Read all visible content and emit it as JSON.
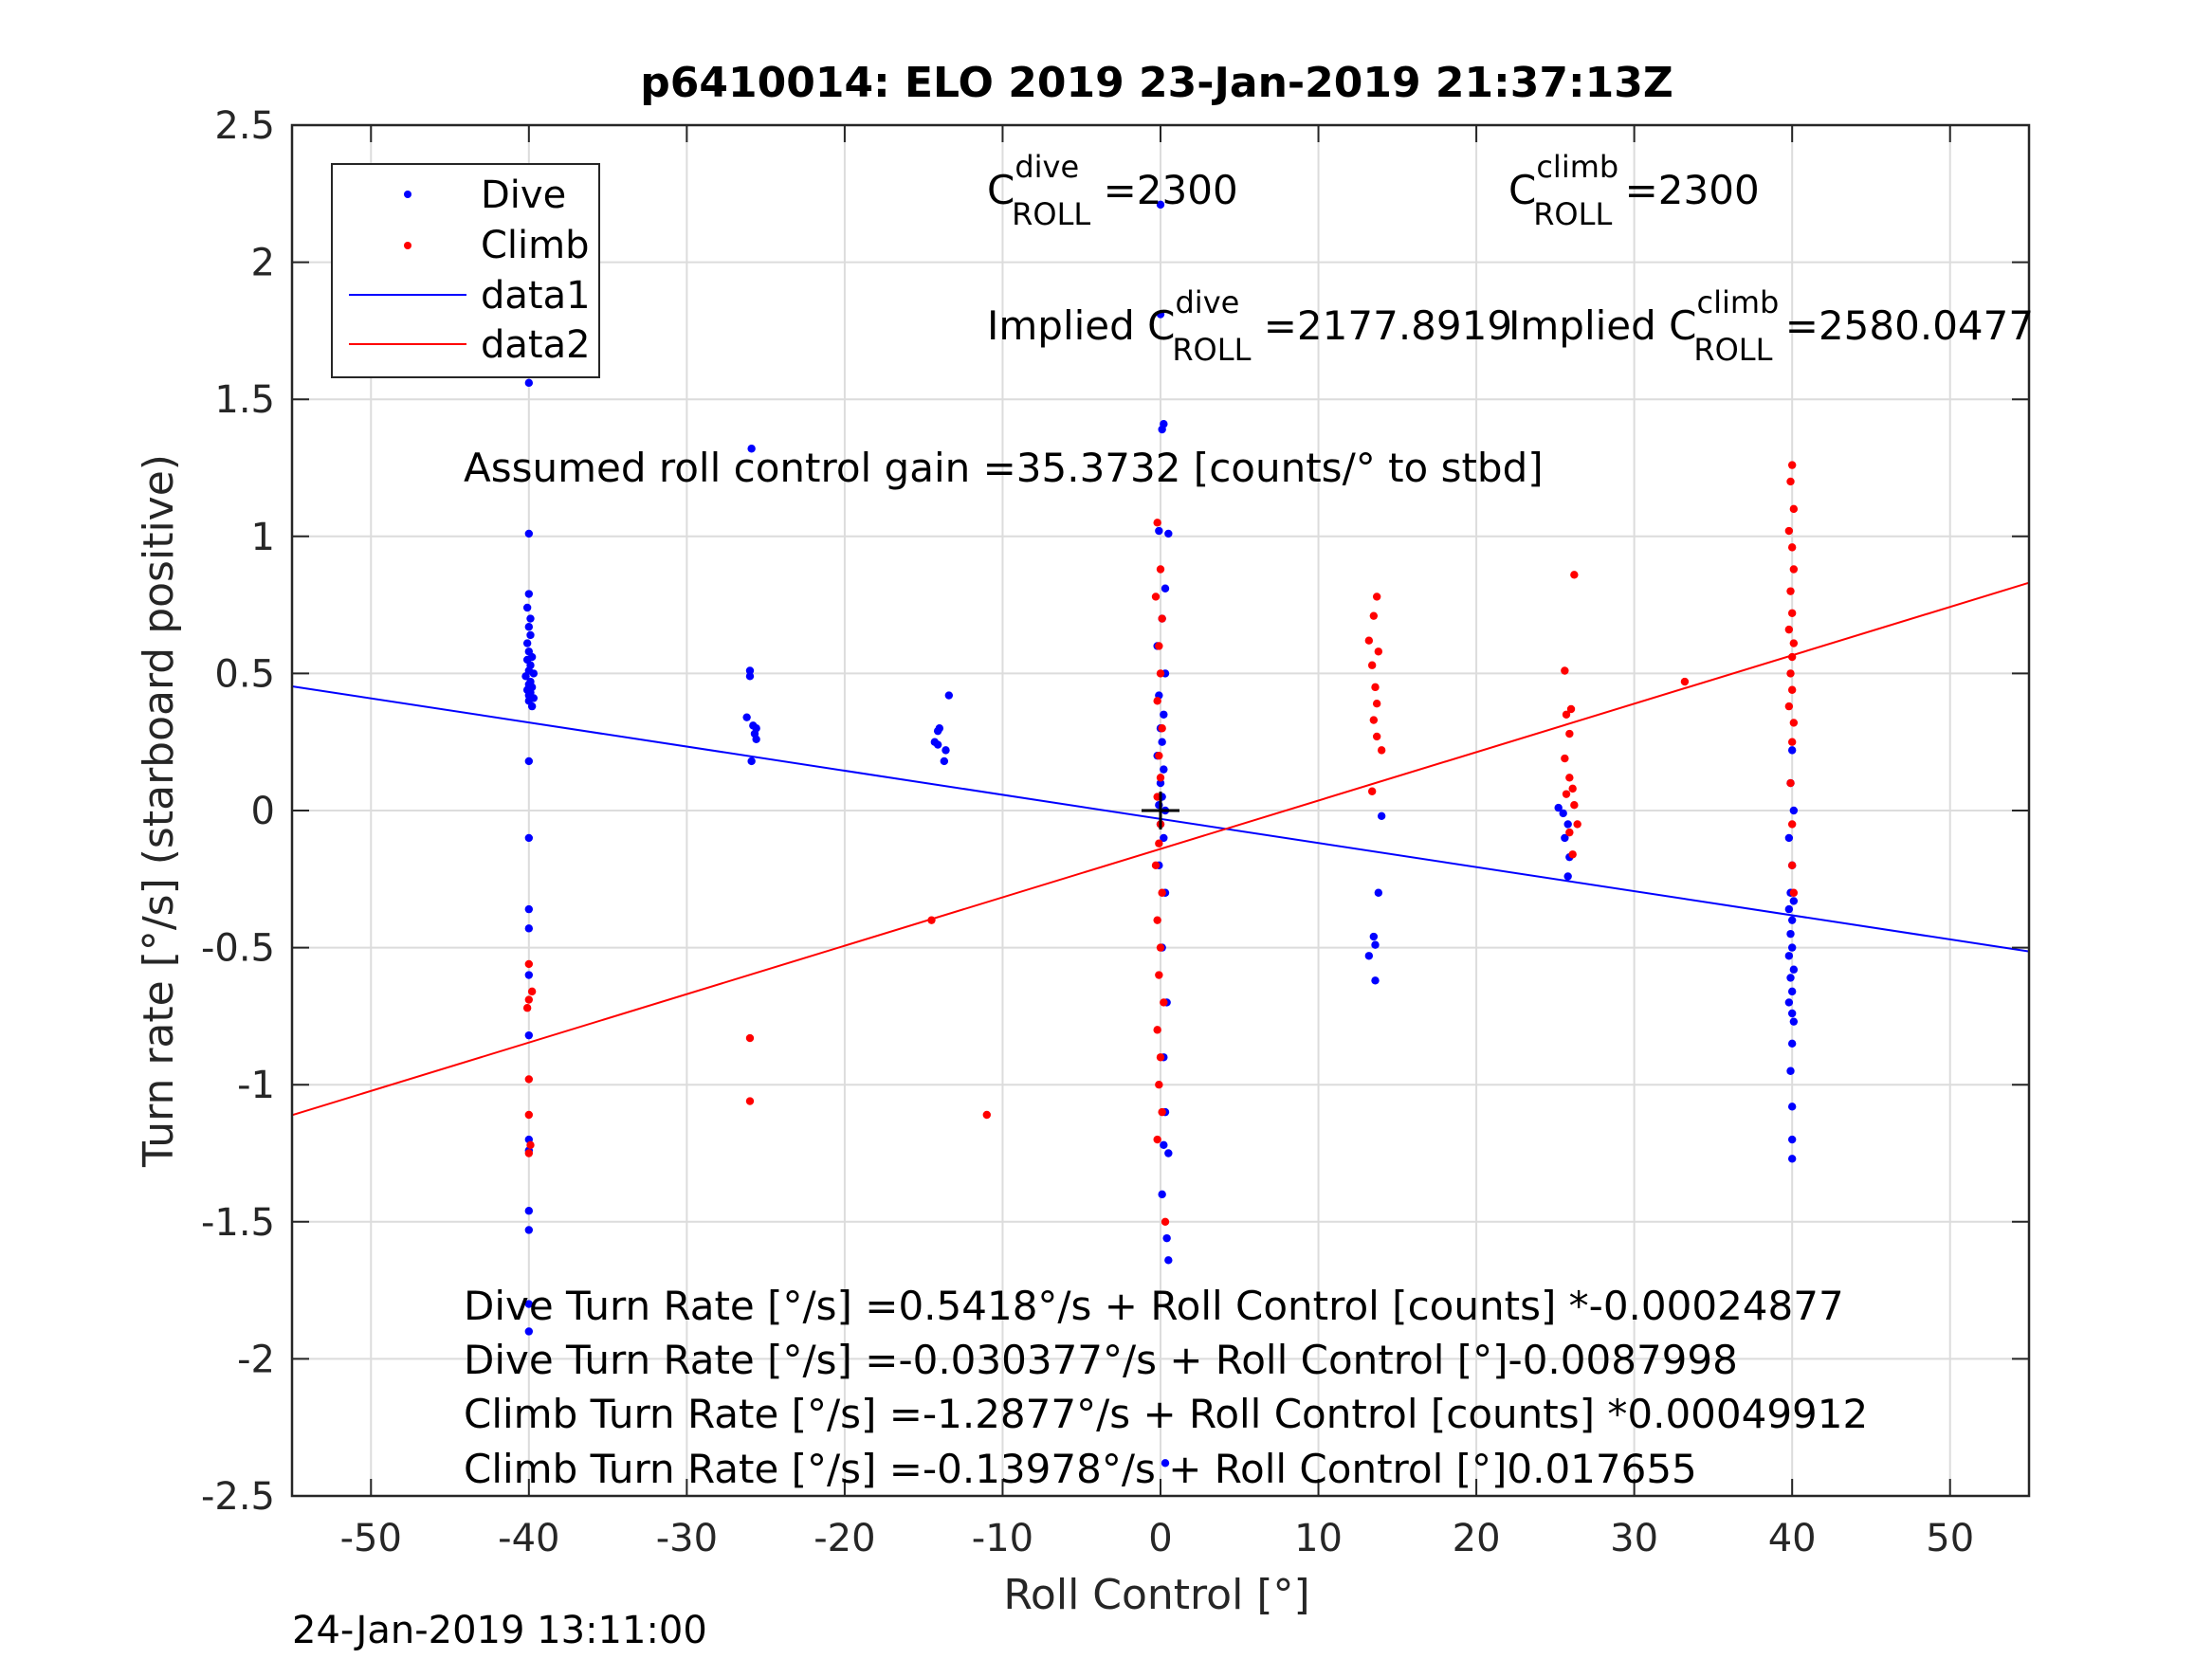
{
  "chart_data": {
    "type": "scatter",
    "title": "p6410014: ELO 2019 23-Jan-2019 21:37:13Z",
    "xlabel": "Roll Control [°]",
    "ylabel": "Turn rate [°/s] (starboard positive)",
    "xlim": [
      -55,
      55
    ],
    "ylim": [
      -2.5,
      2.5
    ],
    "xticks": [
      -50,
      -40,
      -30,
      -20,
      -10,
      0,
      10,
      20,
      30,
      40,
      50
    ],
    "yticks": [
      -2.5,
      -2,
      -1.5,
      -1,
      -0.5,
      0,
      0.5,
      1,
      1.5,
      2,
      2.5
    ],
    "xtick_labels": [
      "-50",
      "-40",
      "-30",
      "-20",
      "-10",
      "0",
      "10",
      "20",
      "30",
      "40",
      "50"
    ],
    "ytick_labels": [
      "-2.5",
      "-2",
      "-1.5",
      "-1",
      "-0.5",
      "0",
      "0.5",
      "1",
      "1.5",
      "2",
      "2.5"
    ],
    "grid": true,
    "legend_location": "top-left",
    "series": [
      {
        "name": "Dive",
        "kind": "points",
        "color": "#0000ff",
        "points": [
          [
            -40,
            1.56
          ],
          [
            -40,
            1.01
          ],
          [
            -40,
            0.79
          ],
          [
            -40.1,
            0.74
          ],
          [
            -39.9,
            0.7
          ],
          [
            -40,
            0.67
          ],
          [
            -39.9,
            0.64
          ],
          [
            -40.1,
            0.61
          ],
          [
            -40,
            0.58
          ],
          [
            -39.8,
            0.56
          ],
          [
            -40.1,
            0.55
          ],
          [
            -39.9,
            0.53
          ],
          [
            -40,
            0.51
          ],
          [
            -39.7,
            0.5
          ],
          [
            -40.2,
            0.49
          ],
          [
            -39.9,
            0.47
          ],
          [
            -40,
            0.46
          ],
          [
            -39.8,
            0.45
          ],
          [
            -40.1,
            0.44
          ],
          [
            -39.9,
            0.43
          ],
          [
            -40,
            0.42
          ],
          [
            -39.7,
            0.41
          ],
          [
            -40,
            0.4
          ],
          [
            -39.8,
            0.38
          ],
          [
            -40,
            0.18
          ],
          [
            -40,
            -0.1
          ],
          [
            -40,
            -0.36
          ],
          [
            -40,
            -0.43
          ],
          [
            -40,
            -0.6
          ],
          [
            -40,
            -0.82
          ],
          [
            -40,
            -1.2
          ],
          [
            -40,
            -1.24
          ],
          [
            -40,
            -1.46
          ],
          [
            -40,
            -1.53
          ],
          [
            -40,
            -1.8
          ],
          [
            -40,
            -1.9
          ],
          [
            -26,
            0.51
          ],
          [
            -26,
            0.49
          ],
          [
            -26.2,
            0.34
          ],
          [
            -25.8,
            0.31
          ],
          [
            -25.6,
            0.3
          ],
          [
            -25.7,
            0.28
          ],
          [
            -25.6,
            0.26
          ],
          [
            -25.9,
            0.18
          ],
          [
            -25.9,
            1.32
          ],
          [
            -14,
            0.3
          ],
          [
            -14.1,
            0.29
          ],
          [
            -13.4,
            0.42
          ],
          [
            -14.3,
            0.25
          ],
          [
            -14.1,
            0.24
          ],
          [
            -13.6,
            0.22
          ],
          [
            -13.7,
            0.18
          ],
          [
            0,
            2.21
          ],
          [
            0,
            1.81
          ],
          [
            0.2,
            1.41
          ],
          [
            0.1,
            1.39
          ],
          [
            -0.1,
            1.02
          ],
          [
            0.5,
            1.01
          ],
          [
            0.3,
            0.81
          ],
          [
            0.1,
            0.7
          ],
          [
            -0.2,
            0.6
          ],
          [
            0.3,
            0.5
          ],
          [
            -0.1,
            0.42
          ],
          [
            0.2,
            0.35
          ],
          [
            0,
            0.3
          ],
          [
            0.1,
            0.25
          ],
          [
            -0.2,
            0.2
          ],
          [
            0.2,
            0.15
          ],
          [
            0,
            0.1
          ],
          [
            0.1,
            0.05
          ],
          [
            -0.1,
            0.02
          ],
          [
            0.3,
            0.0
          ],
          [
            0,
            -0.05
          ],
          [
            0.2,
            -0.1
          ],
          [
            -0.1,
            -0.2
          ],
          [
            0.3,
            -0.3
          ],
          [
            0.1,
            -0.5
          ],
          [
            0.4,
            -0.7
          ],
          [
            0.2,
            -0.9
          ],
          [
            0.3,
            -1.1
          ],
          [
            0.2,
            -1.22
          ],
          [
            0.5,
            -1.25
          ],
          [
            0.1,
            -1.4
          ],
          [
            0.4,
            -1.56
          ],
          [
            0.5,
            -1.64
          ],
          [
            0.3,
            -2.38
          ],
          [
            14,
            -0.02
          ],
          [
            13.8,
            -0.3
          ],
          [
            13.5,
            -0.46
          ],
          [
            13.6,
            -0.49
          ],
          [
            13.2,
            -0.53
          ],
          [
            13.6,
            -0.62
          ],
          [
            25.2,
            0.01
          ],
          [
            25.5,
            -0.01
          ],
          [
            25.8,
            -0.05
          ],
          [
            25.6,
            -0.1
          ],
          [
            25.9,
            -0.17
          ],
          [
            25.8,
            -0.24
          ],
          [
            40,
            0.22
          ],
          [
            39.9,
            0.1
          ],
          [
            40.1,
            0.0
          ],
          [
            39.8,
            -0.1
          ],
          [
            40,
            -0.2
          ],
          [
            39.9,
            -0.3
          ],
          [
            40.1,
            -0.33
          ],
          [
            39.8,
            -0.36
          ],
          [
            40,
            -0.4
          ],
          [
            39.9,
            -0.45
          ],
          [
            40,
            -0.5
          ],
          [
            39.8,
            -0.53
          ],
          [
            40.1,
            -0.58
          ],
          [
            39.9,
            -0.61
          ],
          [
            40,
            -0.66
          ],
          [
            39.8,
            -0.7
          ],
          [
            40,
            -0.74
          ],
          [
            40.1,
            -0.77
          ],
          [
            40,
            -0.85
          ],
          [
            39.9,
            -0.95
          ],
          [
            40,
            -1.08
          ],
          [
            40,
            -1.2
          ],
          [
            40,
            -1.27
          ]
        ]
      },
      {
        "name": "Climb",
        "kind": "points",
        "color": "#ff0000",
        "points": [
          [
            -40,
            -0.56
          ],
          [
            -39.8,
            -0.66
          ],
          [
            -40,
            -0.69
          ],
          [
            -40.1,
            -0.72
          ],
          [
            -40,
            -0.98
          ],
          [
            -40,
            -1.11
          ],
          [
            -39.9,
            -1.22
          ],
          [
            -40,
            -1.25
          ],
          [
            -26,
            -0.83
          ],
          [
            -26,
            -1.06
          ],
          [
            -14.5,
            -0.4
          ],
          [
            -11,
            -1.11
          ],
          [
            -0.2,
            1.05
          ],
          [
            0,
            0.88
          ],
          [
            -0.3,
            0.78
          ],
          [
            0.1,
            0.7
          ],
          [
            -0.1,
            0.6
          ],
          [
            0,
            0.5
          ],
          [
            -0.2,
            0.4
          ],
          [
            0.1,
            0.3
          ],
          [
            -0.1,
            0.2
          ],
          [
            0,
            0.12
          ],
          [
            -0.2,
            0.05
          ],
          [
            0,
            -0.05
          ],
          [
            -0.1,
            -0.12
          ],
          [
            -0.3,
            -0.2
          ],
          [
            0.1,
            -0.3
          ],
          [
            -0.2,
            -0.4
          ],
          [
            0,
            -0.5
          ],
          [
            -0.1,
            -0.6
          ],
          [
            0.2,
            -0.7
          ],
          [
            -0.2,
            -0.8
          ],
          [
            0,
            -0.9
          ],
          [
            -0.1,
            -1.0
          ],
          [
            0.1,
            -1.1
          ],
          [
            -0.2,
            -1.2
          ],
          [
            0.3,
            -1.5
          ],
          [
            13.5,
            0.71
          ],
          [
            13.2,
            0.62
          ],
          [
            13.8,
            0.58
          ],
          [
            13.4,
            0.53
          ],
          [
            13.6,
            0.45
          ],
          [
            13.7,
            0.39
          ],
          [
            13.5,
            0.33
          ],
          [
            13.7,
            0.27
          ],
          [
            14,
            0.22
          ],
          [
            13.4,
            0.07
          ],
          [
            13.7,
            0.78
          ],
          [
            26.2,
            0.86
          ],
          [
            25.6,
            0.51
          ],
          [
            26,
            0.37
          ],
          [
            25.7,
            0.35
          ],
          [
            25.9,
            0.28
          ],
          [
            25.6,
            0.19
          ],
          [
            25.9,
            0.12
          ],
          [
            26.1,
            0.08
          ],
          [
            25.7,
            0.06
          ],
          [
            26.2,
            0.02
          ],
          [
            26.4,
            -0.05
          ],
          [
            25.9,
            -0.08
          ],
          [
            26.1,
            -0.16
          ],
          [
            33.2,
            0.47
          ],
          [
            40,
            1.26
          ],
          [
            39.9,
            1.2
          ],
          [
            40.1,
            1.1
          ],
          [
            39.8,
            1.02
          ],
          [
            40,
            0.96
          ],
          [
            40.1,
            0.88
          ],
          [
            39.9,
            0.8
          ],
          [
            40,
            0.72
          ],
          [
            39.8,
            0.66
          ],
          [
            40.1,
            0.61
          ],
          [
            40,
            0.56
          ],
          [
            39.9,
            0.5
          ],
          [
            40,
            0.44
          ],
          [
            39.8,
            0.38
          ],
          [
            40.1,
            0.32
          ],
          [
            40,
            0.25
          ],
          [
            39.9,
            0.1
          ],
          [
            40,
            -0.05
          ],
          [
            40,
            -0.2
          ],
          [
            40.1,
            -0.3
          ]
        ]
      },
      {
        "name": "data1",
        "kind": "line",
        "color": "#0000ff",
        "x": [
          -55,
          55
        ],
        "y": [
          0.453,
          -0.514
        ]
      },
      {
        "name": "data2",
        "kind": "line",
        "color": "#ff0000",
        "x": [
          -55,
          55
        ],
        "y": [
          -1.111,
          0.831
        ]
      }
    ],
    "marker": {
      "x": 0,
      "y": 0,
      "symbol": "+"
    },
    "annotations": {
      "c_dive": {
        "prefix": "C",
        "sup": "dive",
        "sub": "ROLL",
        "value": " =2300"
      },
      "c_climb": {
        "prefix": "C",
        "sup": "climb",
        "sub": "ROLL",
        "value": " =2300"
      },
      "implied_dive": {
        "prefix": "Implied C",
        "sup": "dive",
        "sub": "ROLL",
        "value": " =2177.8919"
      },
      "implied_climb": {
        "prefix": "Implied C",
        "sup": "climb",
        "sub": "ROLL",
        "value": " =2580.0477"
      },
      "gain": "Assumed roll control gain =35.3732 [counts/° to stbd]",
      "eq1": "Dive Turn Rate [°/s] =0.5418°/s + Roll Control [counts] *-0.00024877",
      "eq2": "Dive Turn Rate [°/s] =-0.030377°/s + Roll Control [°]-0.0087998",
      "eq3": "Climb Turn Rate [°/s] =-1.2877°/s + Roll Control [counts] *0.00049912",
      "eq4": "Climb Turn Rate [°/s] =-0.13978°/s + Roll Control [°]0.017655"
    }
  },
  "footer": {
    "timestamp": "24-Jan-2019 13:11:00"
  }
}
